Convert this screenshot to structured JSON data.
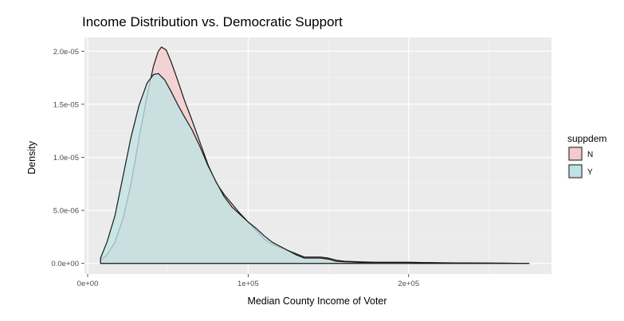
{
  "chart_data": {
    "type": "area",
    "title": "Income Distribution vs. Democratic Support",
    "xlabel": "Median County Income of Voter",
    "ylabel": "Density",
    "xlim": [
      -2000,
      289000
    ],
    "ylim": [
      -1e-06,
      2.13e-05
    ],
    "x_ticks": [
      {
        "value": 0,
        "label": "0e+00"
      },
      {
        "value": 100000,
        "label": "1e+05"
      },
      {
        "value": 200000,
        "label": "2e+05"
      }
    ],
    "y_ticks": [
      {
        "value": 0,
        "label": "0.0e+00"
      },
      {
        "value": 5e-06,
        "label": "5.0e-06"
      },
      {
        "value": 1e-05,
        "label": "1.0e-05"
      },
      {
        "value": 1.5e-05,
        "label": "1.5e-05"
      },
      {
        "value": 2e-05,
        "label": "2.0e-05"
      }
    ],
    "grid": true,
    "legend": {
      "title": "suppdem",
      "position": "right"
    },
    "series": [
      {
        "name": "N",
        "color": "#F8766D",
        "fill": "#F4CACB",
        "points": [
          [
            8000,
            0.0
          ],
          [
            8000,
            3e-07
          ],
          [
            12000,
            8e-07
          ],
          [
            17000,
            2e-06
          ],
          [
            22000,
            4.2e-06
          ],
          [
            27000,
            7.5e-06
          ],
          [
            32000,
            1.18e-05
          ],
          [
            37000,
            1.58e-05
          ],
          [
            41000,
            1.86e-05
          ],
          [
            44000,
            2e-05
          ],
          [
            46000,
            2.04e-05
          ],
          [
            49000,
            2.01e-05
          ],
          [
            52000,
            1.9e-05
          ],
          [
            56000,
            1.73e-05
          ],
          [
            60000,
            1.55e-05
          ],
          [
            65000,
            1.35e-05
          ],
          [
            70000,
            1.14e-05
          ],
          [
            75000,
            9.3e-06
          ],
          [
            80000,
            7.6e-06
          ],
          [
            85000,
            6.5e-06
          ],
          [
            90000,
            5.6e-06
          ],
          [
            95000,
            4.7e-06
          ],
          [
            100000,
            3.9e-06
          ],
          [
            105000,
            3.1e-06
          ],
          [
            110000,
            2.3e-06
          ],
          [
            115000,
            1.8e-06
          ],
          [
            120000,
            1.5e-06
          ],
          [
            125000,
            1.2e-06
          ],
          [
            130000,
            9e-07
          ],
          [
            135000,
            6e-07
          ],
          [
            140000,
            6e-07
          ],
          [
            145000,
            6e-07
          ],
          [
            150000,
            5e-07
          ],
          [
            155000,
            3e-07
          ],
          [
            160000,
            2e-07
          ],
          [
            170000,
            1.5e-07
          ],
          [
            180000,
            1e-07
          ],
          [
            200000,
            1e-07
          ],
          [
            220000,
            5e-08
          ],
          [
            240000,
            3e-08
          ],
          [
            275000,
            0.0
          ]
        ]
      },
      {
        "name": "Y",
        "color": "#00BFC4",
        "fill": "#BFE3E4",
        "points": [
          [
            8000,
            0.0
          ],
          [
            8000,
            5e-07
          ],
          [
            12000,
            2e-06
          ],
          [
            17000,
            4.5e-06
          ],
          [
            22000,
            8.2e-06
          ],
          [
            27000,
            1.19e-05
          ],
          [
            32000,
            1.49e-05
          ],
          [
            37000,
            1.7e-05
          ],
          [
            41000,
            1.78e-05
          ],
          [
            44000,
            1.79e-05
          ],
          [
            48000,
            1.73e-05
          ],
          [
            52000,
            1.62e-05
          ],
          [
            56000,
            1.5e-05
          ],
          [
            60000,
            1.39e-05
          ],
          [
            65000,
            1.26e-05
          ],
          [
            70000,
            1.1e-05
          ],
          [
            75000,
            9.2e-06
          ],
          [
            80000,
            7.7e-06
          ],
          [
            85000,
            6.3e-06
          ],
          [
            90000,
            5.3e-06
          ],
          [
            95000,
            4.6e-06
          ],
          [
            100000,
            3.9e-06
          ],
          [
            105000,
            3.3e-06
          ],
          [
            110000,
            2.6e-06
          ],
          [
            115000,
            2e-06
          ],
          [
            120000,
            1.6e-06
          ],
          [
            125000,
            1.2e-06
          ],
          [
            130000,
            8e-07
          ],
          [
            135000,
            5e-07
          ],
          [
            140000,
            5e-07
          ],
          [
            145000,
            5e-07
          ],
          [
            150000,
            4e-07
          ],
          [
            155000,
            2e-07
          ],
          [
            160000,
            1.5e-07
          ],
          [
            170000,
            1e-07
          ],
          [
            180000,
            1e-07
          ],
          [
            200000,
            1e-07
          ],
          [
            220000,
            5e-08
          ],
          [
            240000,
            3e-08
          ],
          [
            275000,
            0.0
          ]
        ]
      }
    ]
  }
}
